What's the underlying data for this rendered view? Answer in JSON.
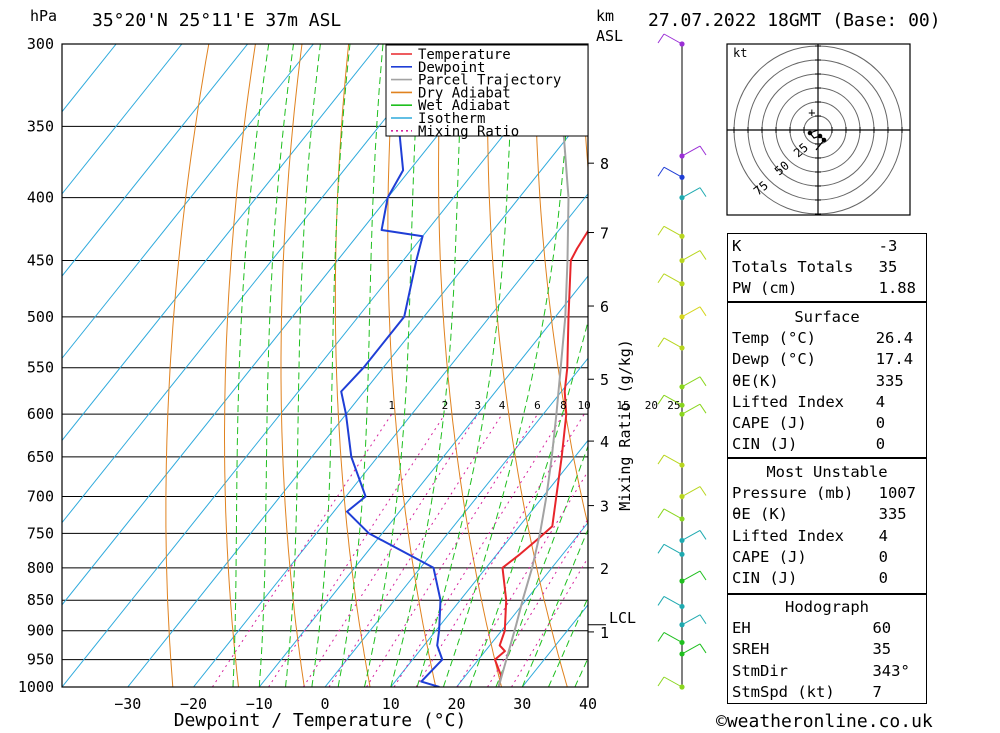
{
  "header": {
    "hpa_unit": "hPa",
    "location": "35°20'N  25°11'E  37m  ASL",
    "km_unit": "km",
    "asl_unit": "ASL",
    "datetime": "27.07.2022  18GMT  (Base: 00)"
  },
  "chart_data": {
    "type": "skew-t",
    "xlabel": "Dewpoint / Temperature (°C)",
    "ylabel": "hPa",
    "mixing_ratio_axis_label": "Mixing Ratio (g/kg)",
    "pressure_levels": [
      300,
      350,
      400,
      450,
      500,
      550,
      600,
      650,
      700,
      750,
      800,
      850,
      900,
      950,
      1000
    ],
    "pressure_range": [
      300,
      1000
    ],
    "temperature_ticks": [
      -30,
      -20,
      -10,
      0,
      10,
      20,
      30,
      40
    ],
    "temperature_range_at_1000hPa": [
      -40,
      40
    ],
    "height_ticks_km": [
      {
        "label": "8",
        "pressure": 375
      },
      {
        "label": "7",
        "pressure": 427
      },
      {
        "label": "6",
        "pressure": 490
      },
      {
        "label": "5",
        "pressure": 562
      },
      {
        "label": "4",
        "pressure": 631
      },
      {
        "label": "3",
        "pressure": 712
      },
      {
        "label": "2",
        "pressure": 800
      },
      {
        "label": "1",
        "pressure": 902
      }
    ],
    "lcl": {
      "label": "LCL",
      "pressure": 890
    },
    "mixing_ratio_labels": [
      "1",
      "2",
      "3",
      "4",
      "6",
      "8",
      "10",
      "15",
      "20",
      "25"
    ],
    "mixing_ratio_values": [
      1,
      2,
      3,
      4,
      6,
      8,
      10,
      15,
      20,
      25
    ],
    "legend": [
      {
        "name": "Temperature",
        "color": "#e8262b"
      },
      {
        "name": "Dewpoint",
        "color": "#1f3ed6"
      },
      {
        "name": "Parcel Trajectory",
        "color": "#a3a3a3"
      },
      {
        "name": "Dry Adiabat",
        "color": "#e0821f"
      },
      {
        "name": "Wet Adiabat",
        "color": "#1fbf1f"
      },
      {
        "name": "Isotherm",
        "color": "#2eaadc"
      },
      {
        "name": "Mixing Ratio",
        "color": "#d6239e"
      }
    ],
    "legend_placement": "top-right",
    "series": [
      {
        "name": "Temperature",
        "points": [
          [
            1000,
            26.4
          ],
          [
            980,
            25.5
          ],
          [
            950,
            22.5
          ],
          [
            935,
            23
          ],
          [
            925,
            21.5
          ],
          [
            900,
            20.5
          ],
          [
            850,
            17
          ],
          [
            800,
            12.5
          ],
          [
            780,
            13.5
          ],
          [
            755,
            14.5
          ],
          [
            740,
            15
          ],
          [
            700,
            12
          ],
          [
            650,
            8
          ],
          [
            600,
            3.5
          ],
          [
            575,
            0.5
          ],
          [
            550,
            -2
          ],
          [
            500,
            -8
          ],
          [
            450,
            -14.5
          ],
          [
            440,
            -15
          ],
          [
            425,
            -15.5
          ],
          [
            400,
            -18
          ],
          [
            375,
            -21
          ],
          [
            350,
            -24
          ]
        ]
      },
      {
        "name": "Dewpoint",
        "points": [
          [
            1000,
            17.4
          ],
          [
            990,
            14
          ],
          [
            950,
            14.5
          ],
          [
            925,
            12
          ],
          [
            900,
            10.5
          ],
          [
            850,
            7
          ],
          [
            800,
            2
          ],
          [
            750,
            -12
          ],
          [
            720,
            -18
          ],
          [
            700,
            -17
          ],
          [
            650,
            -24
          ],
          [
            600,
            -30
          ],
          [
            575,
            -33.5
          ],
          [
            550,
            -33
          ],
          [
            500,
            -33
          ],
          [
            450,
            -38
          ],
          [
            430,
            -40
          ],
          [
            425,
            -47
          ],
          [
            400,
            -50
          ],
          [
            380,
            -51
          ],
          [
            350,
            -57
          ],
          [
            300,
            -63
          ]
        ]
      },
      {
        "name": "Parcel Trajectory",
        "points": [
          [
            1000,
            26.4
          ],
          [
            890,
            21.5
          ],
          [
            850,
            19.5
          ],
          [
            800,
            17
          ],
          [
            750,
            14
          ],
          [
            700,
            10.5
          ],
          [
            650,
            6.5
          ],
          [
            600,
            2
          ],
          [
            550,
            -3
          ],
          [
            500,
            -8.5
          ],
          [
            450,
            -15
          ],
          [
            400,
            -22.5
          ],
          [
            350,
            -32
          ],
          [
            300,
            -43
          ]
        ]
      }
    ],
    "dry_adiabats_theta_K": [
      250,
      260,
      270,
      280,
      290,
      300,
      310,
      320,
      330,
      340,
      350,
      360,
      370,
      380,
      390,
      400,
      410,
      420,
      430,
      440,
      450,
      460,
      470
    ],
    "wet_adiabats_theta_w_C": [
      -14,
      -10,
      -6,
      -2,
      2,
      6,
      10,
      14,
      18,
      22,
      26,
      30,
      34,
      38
    ],
    "isotherms_C": [
      -110,
      -100,
      -90,
      -80,
      -70,
      -60,
      -50,
      -40,
      -30,
      -20,
      -10,
      0,
      10,
      20,
      30,
      40
    ],
    "hodograph": {
      "unit_label": "kt",
      "ring_labels": [
        "25",
        "50",
        "75"
      ],
      "storm_motion_dir_deg": 343,
      "storm_motion_speed_kt": 7
    },
    "wind_barbs": [
      {
        "pressure": 300,
        "color": "#9b2fd6"
      },
      {
        "pressure": 370,
        "color": "#9b2fd6"
      },
      {
        "pressure": 385,
        "color": "#1f3ed6"
      },
      {
        "pressure": 400,
        "color": "#1faab0"
      },
      {
        "pressure": 430,
        "color": "#b8d61f"
      },
      {
        "pressure": 450,
        "color": "#b8d61f"
      },
      {
        "pressure": 470,
        "color": "#b8d61f"
      },
      {
        "pressure": 500,
        "color": "#d6d61f"
      },
      {
        "pressure": 530,
        "color": "#b8d61f"
      },
      {
        "pressure": 570,
        "color": "#8ad61f"
      },
      {
        "pressure": 590,
        "color": "#8ad61f"
      },
      {
        "pressure": 600,
        "color": "#8ad61f"
      },
      {
        "pressure": 660,
        "color": "#b8d61f"
      },
      {
        "pressure": 700,
        "color": "#b8d61f"
      },
      {
        "pressure": 730,
        "color": "#8ad61f"
      },
      {
        "pressure": 760,
        "color": "#1faab0"
      },
      {
        "pressure": 780,
        "color": "#1faab0"
      },
      {
        "pressure": 820,
        "color": "#1fbf1f"
      },
      {
        "pressure": 860,
        "color": "#1faab0"
      },
      {
        "pressure": 890,
        "color": "#1faab0"
      },
      {
        "pressure": 920,
        "color": "#1fbf1f"
      },
      {
        "pressure": 940,
        "color": "#1fbf1f"
      },
      {
        "pressure": 1000,
        "color": "#8ad61f"
      }
    ]
  },
  "indices": {
    "rows": [
      {
        "label": "K",
        "value": "-3"
      },
      {
        "label": "Totals Totals",
        "value": "35"
      },
      {
        "label": "PW (cm)",
        "value": "1.88"
      }
    ]
  },
  "surface": {
    "title": "Surface",
    "rows": [
      {
        "label": "Temp (°C)",
        "value": "26.4"
      },
      {
        "label": "Dewp (°C)",
        "value": "17.4"
      },
      {
        "label": "θE(K)",
        "value": "335"
      },
      {
        "label": "Lifted Index",
        "value": "4"
      },
      {
        "label": "CAPE (J)",
        "value": "0"
      },
      {
        "label": "CIN (J)",
        "value": "0"
      }
    ]
  },
  "most_unstable": {
    "title": "Most Unstable",
    "rows": [
      {
        "label": "Pressure (mb)",
        "value": "1007"
      },
      {
        "label": "θE (K)",
        "value": "335"
      },
      {
        "label": "Lifted Index",
        "value": "4"
      },
      {
        "label": "CAPE (J)",
        "value": "0"
      },
      {
        "label": "CIN (J)",
        "value": "0"
      }
    ]
  },
  "hodograph_table": {
    "title": "Hodograph",
    "rows": [
      {
        "label": "EH",
        "value": "60"
      },
      {
        "label": "SREH",
        "value": "35"
      },
      {
        "label": "StmDir",
        "value": "343°"
      },
      {
        "label": "StmSpd (kt)",
        "value": "7"
      }
    ]
  },
  "footer": {
    "copyright": "©weatheronline.co.uk"
  }
}
